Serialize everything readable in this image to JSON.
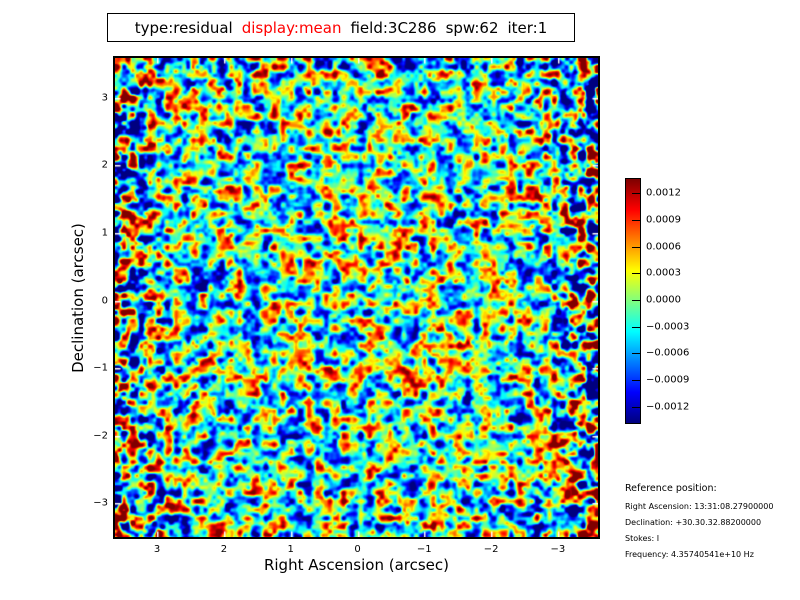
{
  "window": {
    "background": "#ffffff"
  },
  "title": {
    "segments": [
      {
        "text": "type:residual",
        "color": "#000000"
      },
      {
        "text": "display:mean",
        "color": "#ff0000"
      },
      {
        "text": "field:3C286",
        "color": "#000000"
      },
      {
        "text": "spw:62",
        "color": "#000000"
      },
      {
        "text": "iter:1",
        "color": "#000000"
      }
    ]
  },
  "chart_data": {
    "type": "heatmap",
    "title": "type:residual display:mean field:3C286 spw:62 iter:1",
    "xlabel": "Right Ascension (arcsec)",
    "ylabel": "Declination (arcsec)",
    "x_ticks": [
      3,
      2,
      1,
      0,
      -1,
      -2,
      -3
    ],
    "x_tick_labels": [
      "3",
      "2",
      "1",
      "0",
      "−1",
      "−2",
      "−3"
    ],
    "y_ticks": [
      3,
      2,
      1,
      0,
      -1,
      -2,
      -3
    ],
    "y_tick_labels": [
      "3",
      "2",
      "1",
      "0",
      "−1",
      "−2",
      "−3"
    ],
    "x_range": [
      3.63,
      -3.6
    ],
    "y_range": [
      -3.5,
      3.59
    ],
    "grid": false,
    "colormap": "jet",
    "colorbar": {
      "vmin": -0.00137,
      "vmax": 0.00137,
      "tick_values": [
        0.0012,
        0.0009,
        0.0006,
        0.0003,
        0.0,
        -0.0003,
        -0.0006,
        -0.0009,
        -0.0012
      ],
      "tick_labels": [
        "0.0012",
        "0.0009",
        "0.0006",
        "0.0003",
        "0.0000",
        "−0.0003",
        "−0.0006",
        "−0.0009",
        "−0.0012"
      ]
    },
    "content": "Spatially correlated residual noise centered on zero with no source structure; blob size ~0.1-0.2 arcsec; noise amplitude strongly increases toward the left and right edges of the field (dark red / dark blue blobs), mostly teal-green near zero elsewhere"
  },
  "reference": {
    "heading": "Reference position:",
    "lines": [
      "Right Ascension: 13:31:08.27900000",
      "Declination: +30.30.32.88200000",
      "Stokes: I",
      "Frequency: 4.35740541e+10 Hz"
    ]
  }
}
